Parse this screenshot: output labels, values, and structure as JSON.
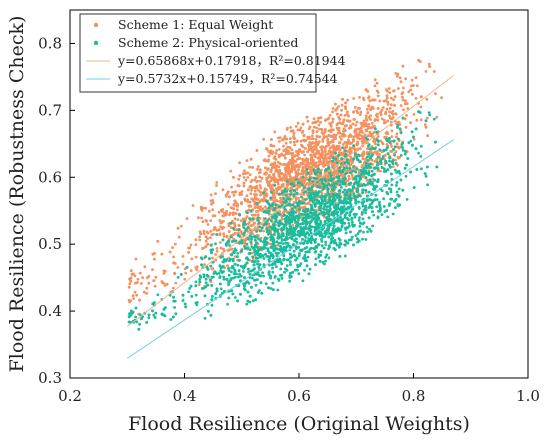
{
  "chart_data": {
    "type": "scatter",
    "xlabel": "Flood Resilience (Original Weights)",
    "ylabel": "Flood Resilience (Robustness Check)",
    "xlim": [
      0.2,
      1.0
    ],
    "ylim": [
      0.3,
      0.85
    ],
    "x_ticks": [
      "0.2",
      "0.4",
      "0.6",
      "0.8",
      "1.0"
    ],
    "y_ticks": [
      "0.3",
      "0.4",
      "0.5",
      "0.6",
      "0.7",
      "0.8"
    ],
    "grid": false,
    "legend_position": "top-left",
    "series": [
      {
        "name": "Scheme 1: Equal Weight",
        "color": "#f4915e",
        "marker": "dot",
        "x_range": [
          0.3,
          0.87
        ],
        "fit": {
          "slope": 0.65868,
          "intercept": 0.17918,
          "r2": 0.81944,
          "label": "y=0.65868x+0.17918，R²=0.81944"
        },
        "envelope": [
          {
            "x": 0.3,
            "y_low": 0.38,
            "y_high": 0.48
          },
          {
            "x": 0.4,
            "y_low": 0.42,
            "y_high": 0.56
          },
          {
            "x": 0.5,
            "y_low": 0.46,
            "y_high": 0.64
          },
          {
            "x": 0.6,
            "y_low": 0.51,
            "y_high": 0.69
          },
          {
            "x": 0.7,
            "y_low": 0.56,
            "y_high": 0.73
          },
          {
            "x": 0.8,
            "y_low": 0.62,
            "y_high": 0.79
          },
          {
            "x": 0.87,
            "y_low": 0.7,
            "y_high": 0.8
          }
        ]
      },
      {
        "name": "Scheme 2: Physical-oriented",
        "color": "#1abc9c",
        "marker": "dot",
        "x_range": [
          0.3,
          0.87
        ],
        "fit": {
          "slope": 0.5732,
          "intercept": 0.15749,
          "r2": 0.74544,
          "label": "y=0.5732x+0.15749，R²=0.74544"
        },
        "envelope": [
          {
            "x": 0.33,
            "y_low": 0.37,
            "y_high": 0.41
          },
          {
            "x": 0.4,
            "y_low": 0.38,
            "y_high": 0.48
          },
          {
            "x": 0.5,
            "y_low": 0.4,
            "y_high": 0.56
          },
          {
            "x": 0.6,
            "y_low": 0.44,
            "y_high": 0.61
          },
          {
            "x": 0.7,
            "y_low": 0.49,
            "y_high": 0.66
          },
          {
            "x": 0.8,
            "y_low": 0.55,
            "y_high": 0.71
          },
          {
            "x": 0.87,
            "y_low": 0.62,
            "y_high": 0.74
          }
        ]
      }
    ],
    "fit_line_colors": [
      "#f2b48c",
      "#6fd3e0"
    ]
  }
}
